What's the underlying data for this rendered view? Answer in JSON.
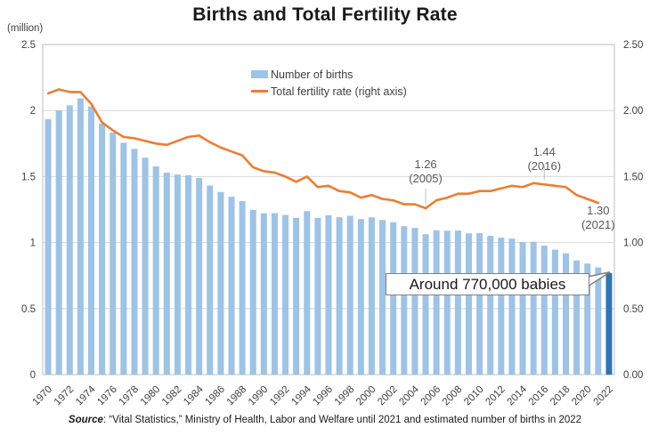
{
  "title": "Births and Total Fertility Rate",
  "axes": {
    "left_unit": "(million)",
    "left_ticks": [
      "2.5",
      "2",
      "1.5",
      "1",
      "0.5",
      "0"
    ],
    "left_tick_values": [
      2.5,
      2.0,
      1.5,
      1.0,
      0.5,
      0.0
    ],
    "right_ticks": [
      "2.50",
      "2.00",
      "1.50",
      "1.00",
      "0.50",
      "0.00"
    ],
    "right_tick_values": [
      2.5,
      2.0,
      1.5,
      1.0,
      0.5,
      0.0
    ]
  },
  "legend": [
    {
      "label": "Number of births",
      "type": "bar",
      "color": "#9DC3E6"
    },
    {
      "label": "Total fertility rate (right axis)",
      "type": "line",
      "color": "#ED7D31"
    }
  ],
  "annotations": [
    {
      "id": "tfr-min",
      "value": "1.26",
      "year_label": "(2005)",
      "year": 2005,
      "leader": true
    },
    {
      "id": "tfr-peak",
      "value": "1.44",
      "year_label": "(2016)",
      "year": 2016,
      "leader": true
    },
    {
      "id": "tfr-latest",
      "value": "1.30",
      "year_label": "(2021)",
      "year": 2021,
      "leader": false
    }
  ],
  "callout": {
    "text": "Around 770,000 babies",
    "points_to_year": 2022
  },
  "source": {
    "label": "Source",
    "rest": ": “Vital Statistics,” Ministry of Health, Labor and Welfare until 2021 and estimated number of births in 2022"
  },
  "colors": {
    "bar": "#9DC3E6",
    "bar_highlight": "#2E75B6",
    "line": "#ED7D31",
    "gridline": "#D9D9D9",
    "plot_border": "#BFBFBF",
    "axis_text": "#404040",
    "leader": "#BFBFBF",
    "callout_border": "#808080"
  },
  "chart_data": {
    "type": "combo",
    "title": "Births and Total Fertility Rate",
    "x": [
      1970,
      1971,
      1972,
      1973,
      1974,
      1975,
      1976,
      1977,
      1978,
      1979,
      1980,
      1981,
      1982,
      1983,
      1984,
      1985,
      1986,
      1987,
      1988,
      1989,
      1990,
      1991,
      1992,
      1993,
      1994,
      1995,
      1996,
      1997,
      1998,
      1999,
      2000,
      2001,
      2002,
      2003,
      2004,
      2005,
      2006,
      2007,
      2008,
      2009,
      2010,
      2011,
      2012,
      2013,
      2014,
      2015,
      2016,
      2017,
      2018,
      2019,
      2020,
      2021,
      2022
    ],
    "x_tick_step": 2,
    "grid": true,
    "legend_position": "top-center",
    "left_axis_range": [
      0,
      2.5
    ],
    "right_axis_range": [
      0,
      2.5
    ],
    "series": [
      {
        "name": "Number of births",
        "type": "bar",
        "axis": "left",
        "unit": "million",
        "color": "#9DC3E6",
        "highlight_year": 2022,
        "highlight_color": "#2E75B6",
        "values": [
          1.934,
          2.001,
          2.039,
          2.092,
          2.03,
          1.901,
          1.833,
          1.755,
          1.709,
          1.643,
          1.577,
          1.529,
          1.515,
          1.509,
          1.49,
          1.432,
          1.383,
          1.347,
          1.314,
          1.247,
          1.222,
          1.223,
          1.209,
          1.188,
          1.238,
          1.187,
          1.207,
          1.192,
          1.203,
          1.178,
          1.191,
          1.171,
          1.154,
          1.124,
          1.111,
          1.063,
          1.093,
          1.09,
          1.091,
          1.07,
          1.071,
          1.051,
          1.037,
          1.03,
          1.004,
          1.006,
          0.977,
          0.946,
          0.918,
          0.865,
          0.841,
          0.812,
          0.77
        ]
      },
      {
        "name": "Total fertility rate (right axis)",
        "type": "line",
        "axis": "right",
        "color": "#ED7D31",
        "values": [
          2.13,
          2.16,
          2.14,
          2.14,
          2.05,
          1.91,
          1.85,
          1.8,
          1.79,
          1.77,
          1.75,
          1.74,
          1.77,
          1.8,
          1.81,
          1.76,
          1.72,
          1.69,
          1.66,
          1.57,
          1.54,
          1.53,
          1.5,
          1.46,
          1.5,
          1.42,
          1.43,
          1.39,
          1.38,
          1.34,
          1.36,
          1.33,
          1.32,
          1.29,
          1.29,
          1.26,
          1.32,
          1.34,
          1.37,
          1.37,
          1.39,
          1.39,
          1.41,
          1.43,
          1.42,
          1.45,
          1.44,
          1.43,
          1.42,
          1.36,
          1.33,
          1.3,
          null
        ]
      }
    ]
  }
}
